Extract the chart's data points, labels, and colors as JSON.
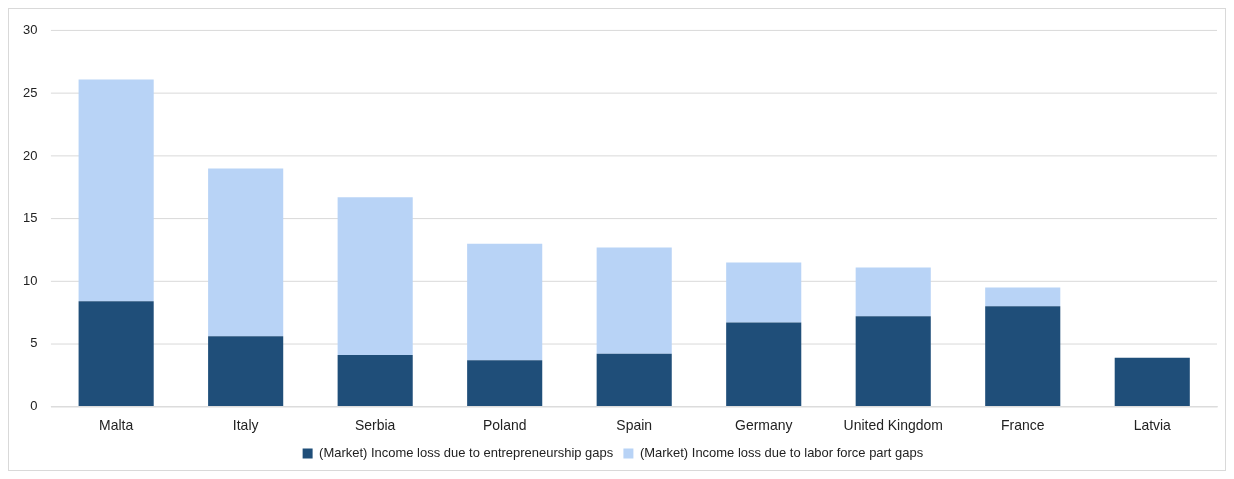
{
  "chart_data": {
    "type": "bar",
    "stacked": true,
    "categories": [
      "Malta",
      "Italy",
      "Serbia",
      "Poland",
      "Spain",
      "Germany",
      "United Kingdom",
      "France",
      "Latvia"
    ],
    "series": [
      {
        "name": "(Market) Income loss due to entrepreneurship gaps",
        "color": "#1f4e79",
        "values": [
          8.4,
          5.6,
          4.1,
          3.7,
          4.2,
          6.7,
          7.2,
          8.0,
          3.9
        ]
      },
      {
        "name": "(Market) Income loss due to labor force part gaps",
        "color": "#b8d3f6",
        "values": [
          17.7,
          13.4,
          12.6,
          9.3,
          8.5,
          4.8,
          3.9,
          1.5,
          0
        ]
      }
    ],
    "ylim": [
      0,
      30
    ],
    "yticks": [
      0,
      5,
      10,
      15,
      20,
      25,
      30
    ],
    "grid": "y",
    "legend": "bottom"
  }
}
